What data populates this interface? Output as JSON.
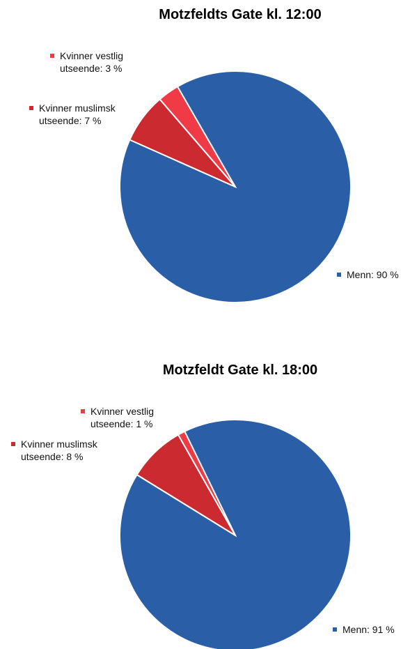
{
  "chart_data": [
    {
      "type": "pie",
      "title": "Motzfeldts Gate kl. 12:00",
      "values": [
        90,
        7,
        3
      ],
      "value_labels": [
        "Menn: 90 %",
        "Kvinner muslimsk utseende: 7 %",
        "Kvinner vestlig utseende: 3 %"
      ],
      "colors": [
        "#2a5ea6",
        "#cc2a31",
        "#f03a46"
      ]
    },
    {
      "type": "pie",
      "title": "Motzfeldt Gate kl. 18:00",
      "values": [
        91,
        8,
        1
      ],
      "value_labels": [
        "Menn: 91 %",
        "Kvinner muslimsk utseende: 8 %",
        "Kvinner vestlig utseende: 1 %"
      ],
      "colors": [
        "#2a5ea6",
        "#cc2a31",
        "#f03a46"
      ]
    }
  ]
}
